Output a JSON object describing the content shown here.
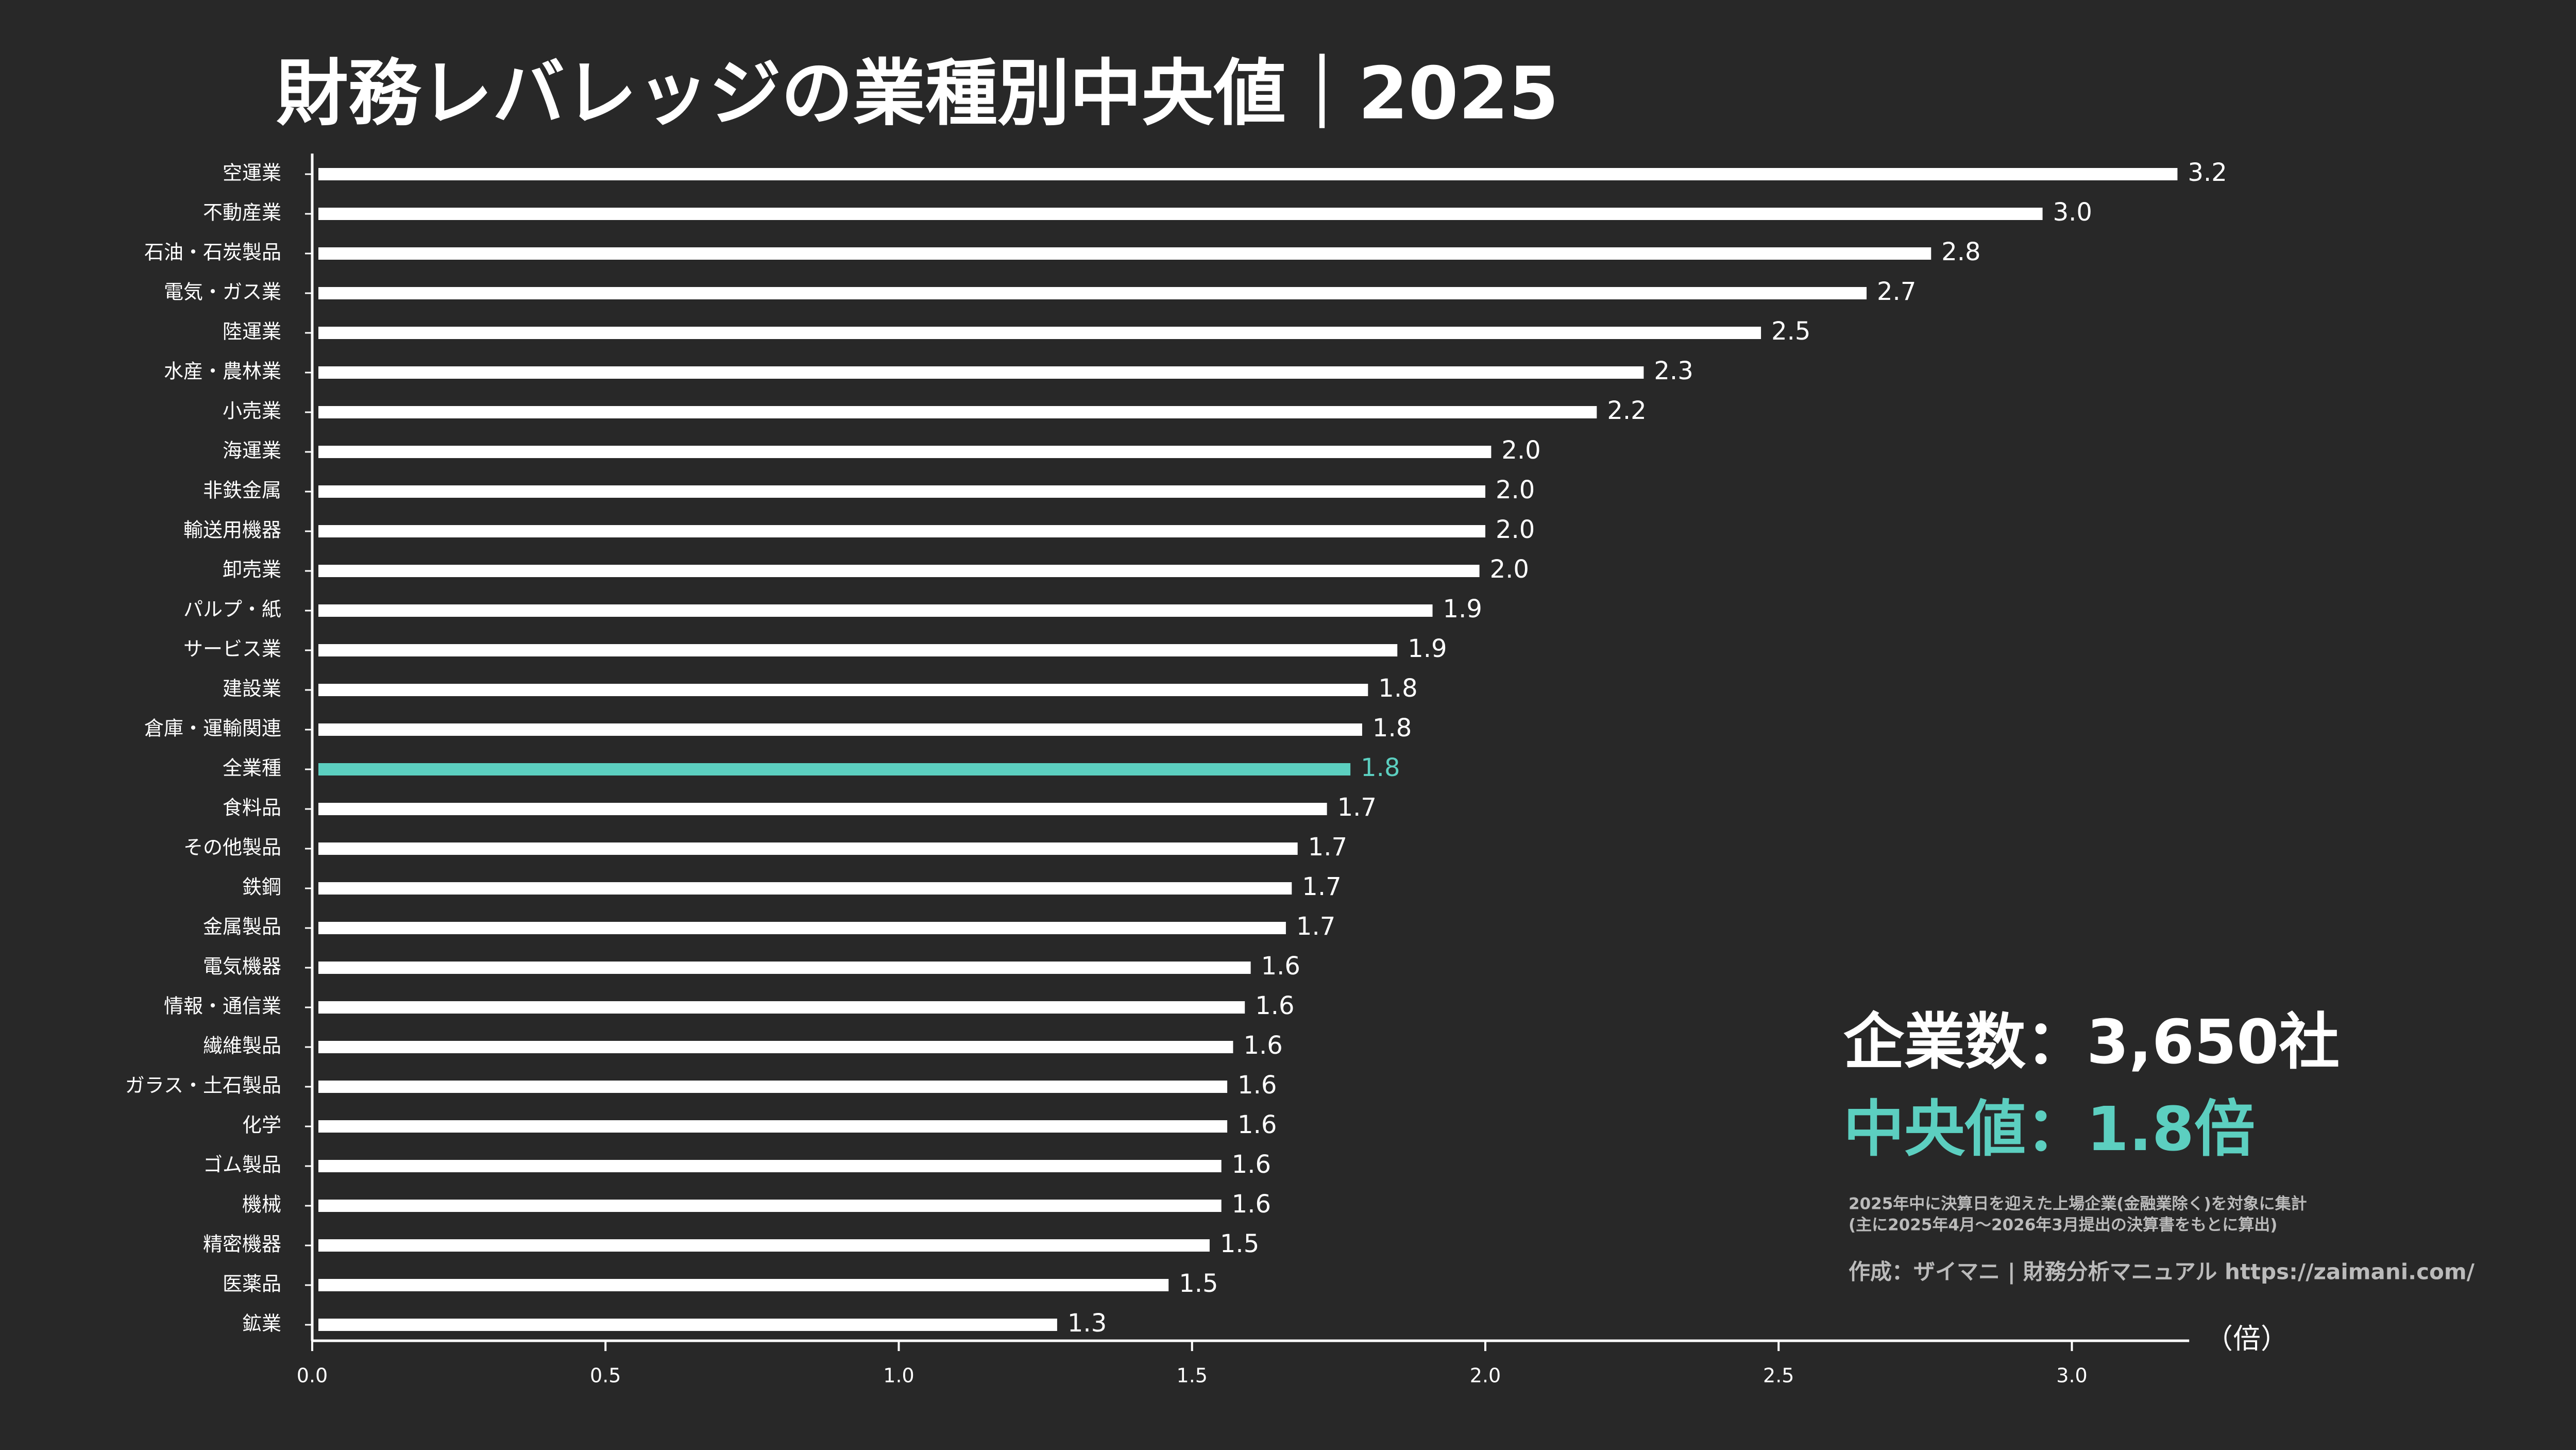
{
  "chart_data": {
    "type": "barh",
    "title": "財務レバレッジの業種別中央値｜2025",
    "categories": [
      "空運業",
      "不動産業",
      "石油・石炭製品",
      "電気・ガス業",
      "陸運業",
      "水産・農林業",
      "小売業",
      "海運業",
      "非鉄金属",
      "輸送用機器",
      "卸売業",
      "パルプ・紙",
      "サービス業",
      "建設業",
      "倉庫・運輸関連",
      "全業種",
      "食料品",
      "その他製品",
      "鉄鋼",
      "金属製品",
      "電気機器",
      "情報・通信業",
      "繊維製品",
      "ガラス・土石製品",
      "化学",
      "ゴム製品",
      "機械",
      "精密機器",
      "医薬品",
      "鉱業"
    ],
    "values": [
      3.18,
      2.95,
      2.76,
      2.65,
      2.47,
      2.27,
      2.19,
      2.01,
      2.0,
      2.0,
      1.99,
      1.91,
      1.85,
      1.8,
      1.79,
      1.77,
      1.73,
      1.68,
      1.67,
      1.66,
      1.6,
      1.59,
      1.57,
      1.56,
      1.56,
      1.55,
      1.55,
      1.53,
      1.46,
      1.27
    ],
    "value_labels": [
      "3.2",
      "3.0",
      "2.8",
      "2.7",
      "2.5",
      "2.3",
      "2.2",
      "2.0",
      "2.0",
      "2.0",
      "2.0",
      "1.9",
      "1.9",
      "1.8",
      "1.8",
      "1.8",
      "1.7",
      "1.7",
      "1.7",
      "1.7",
      "1.6",
      "1.6",
      "1.6",
      "1.6",
      "1.6",
      "1.6",
      "1.6",
      "1.5",
      "1.5",
      "1.3"
    ],
    "colors": [
      "#ffffff",
      "#ffffff",
      "#ffffff",
      "#ffffff",
      "#ffffff",
      "#ffffff",
      "#ffffff",
      "#ffffff",
      "#ffffff",
      "#ffffff",
      "#ffffff",
      "#ffffff",
      "#ffffff",
      "#ffffff",
      "#ffffff",
      "#5ccfc0",
      "#ffffff",
      "#ffffff",
      "#ffffff",
      "#ffffff",
      "#ffffff",
      "#ffffff",
      "#ffffff",
      "#ffffff",
      "#ffffff",
      "#ffffff",
      "#ffffff",
      "#ffffff",
      "#ffffff",
      "#ffffff"
    ],
    "xlim": [
      0,
      3.2
    ],
    "xticks": [
      {
        "value": 0,
        "label": "0.0"
      },
      {
        "value": 0.5,
        "label": "0.5"
      },
      {
        "value": 1,
        "label": "1.0"
      },
      {
        "value": 1.5,
        "label": "1.5"
      },
      {
        "value": 2,
        "label": "2.0"
      },
      {
        "value": 2.5,
        "label": "2.5"
      },
      {
        "value": 3,
        "label": "3.0"
      }
    ],
    "x_unit": "（倍）",
    "annotations": {
      "company_count": "企業数：3,650社",
      "median": "中央値：1.8倍",
      "note_1": "2025年中に決算日を迎えた上場企業(金融業除く)を対象に集計",
      "note_2": "(主に2025年4月～2026年3月提出の決算書をもとに算出)",
      "credit": "作成：ザイマニ | 財務分析マニュアル https://zaimani.com/"
    }
  }
}
